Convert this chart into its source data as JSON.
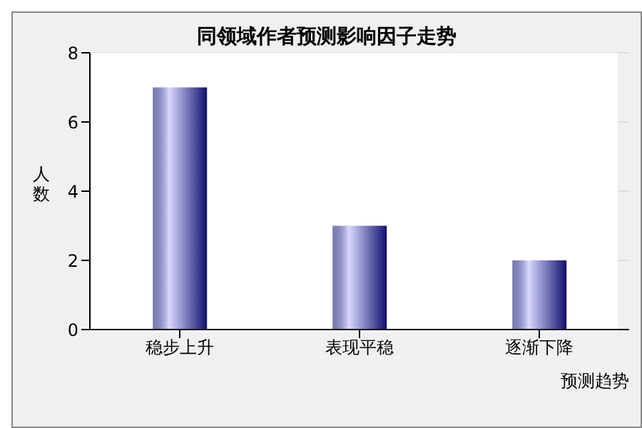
{
  "chart_data": {
    "type": "bar",
    "title": "同领域作者预测影响因子走势",
    "xlabel": "预测趋势",
    "ylabel": "人数",
    "categories": [
      "稳步上升",
      "表现平稳",
      "逐渐下降"
    ],
    "values": [
      7,
      3,
      2
    ],
    "color": "#10106e",
    "ylim": [
      0,
      8
    ],
    "yticks": [
      0,
      2,
      4,
      6,
      8
    ],
    "grid": "y"
  }
}
